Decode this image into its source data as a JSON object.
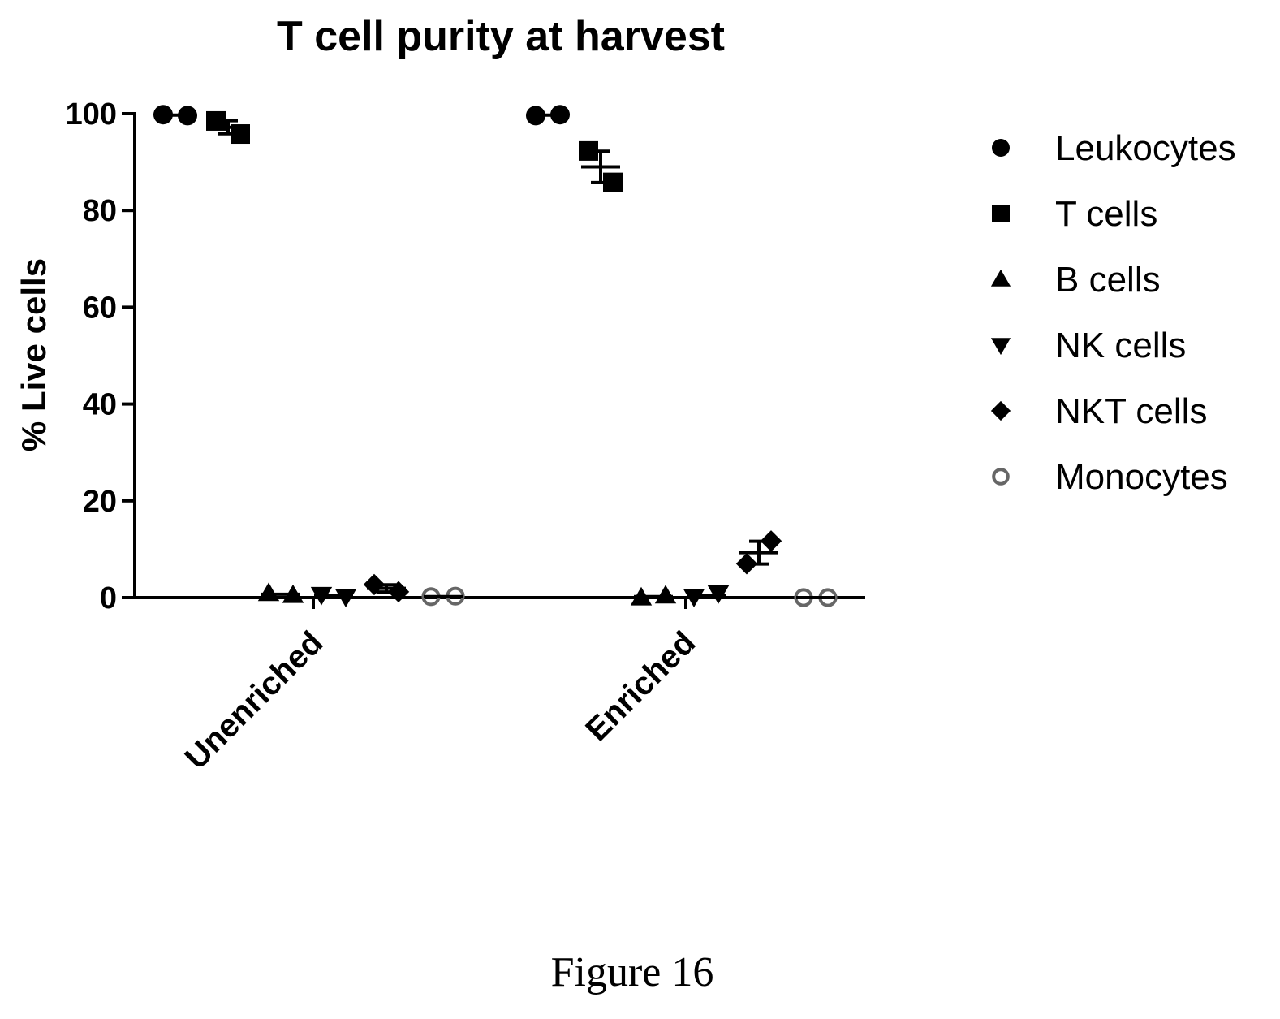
{
  "caption": "Figure 16",
  "chart_data": {
    "type": "scatter",
    "title": "T cell purity at harvest",
    "xlabel": "",
    "ylabel": "% Live cells",
    "ylim": [
      0,
      100
    ],
    "yticks": [
      0,
      20,
      40,
      60,
      80,
      100
    ],
    "categories": [
      "Unenriched",
      "Enriched"
    ],
    "legend_position": "right",
    "series": [
      {
        "name": "Leukocytes",
        "marker": "circle",
        "values": [
          [
            99.8,
            99.6
          ],
          [
            99.6,
            99.8
          ]
        ],
        "mean": [
          99.7,
          99.7
        ]
      },
      {
        "name": "T cells",
        "marker": "square",
        "values": [
          [
            98.5,
            95.8
          ],
          [
            92.3,
            85.8
          ]
        ],
        "mean": [
          97.2,
          89.0
        ]
      },
      {
        "name": "B cells",
        "marker": "triangle-up",
        "values": [
          [
            0.9,
            0.5
          ],
          [
            0.0,
            0.4
          ]
        ],
        "mean": [
          0.7,
          0.2
        ]
      },
      {
        "name": "NK cells",
        "marker": "triangle-down",
        "values": [
          [
            0.6,
            0.2
          ],
          [
            0.2,
            0.9
          ]
        ],
        "mean": [
          0.4,
          0.5
        ]
      },
      {
        "name": "NKT cells",
        "marker": "diamond",
        "values": [
          [
            2.7,
            1.2
          ],
          [
            7.0,
            11.7
          ]
        ],
        "mean": [
          1.9,
          9.3
        ]
      },
      {
        "name": "Monocytes",
        "marker": "open-circle",
        "values": [
          [
            0.2,
            0.3
          ],
          [
            0.0,
            0.0
          ]
        ],
        "mean": [
          0.2,
          0.0
        ]
      }
    ]
  }
}
